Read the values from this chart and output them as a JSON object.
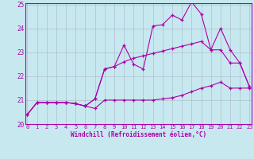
{
  "xlabel": "Windchill (Refroidissement éolien,°C)",
  "xlim": [
    0,
    23
  ],
  "ylim": [
    20,
    25
  ],
  "yticks": [
    20,
    21,
    22,
    23,
    24,
    25
  ],
  "xticks": [
    0,
    1,
    2,
    3,
    4,
    5,
    6,
    7,
    8,
    9,
    10,
    11,
    12,
    13,
    14,
    15,
    16,
    17,
    18,
    19,
    20,
    21,
    22,
    23
  ],
  "background_color": "#c8e8f0",
  "line_color": "#aa00aa",
  "grid_color": "#aabbcc",
  "line1_x": [
    0,
    1,
    2,
    3,
    4,
    5,
    6,
    7,
    8,
    9,
    10,
    11,
    12,
    13,
    14,
    15,
    16,
    17,
    18,
    19,
    20,
    21,
    22,
    23
  ],
  "line1_y": [
    20.4,
    20.9,
    20.9,
    20.9,
    20.9,
    20.85,
    20.75,
    20.65,
    21.0,
    21.0,
    21.0,
    21.0,
    21.0,
    21.0,
    21.05,
    21.1,
    21.2,
    21.35,
    21.5,
    21.6,
    21.75,
    21.5,
    21.5,
    21.5
  ],
  "line2_x": [
    0,
    1,
    2,
    3,
    4,
    5,
    6,
    7,
    8,
    9,
    10,
    11,
    12,
    13,
    14,
    15,
    16,
    17,
    18,
    19,
    20,
    21,
    22,
    23
  ],
  "line2_y": [
    20.4,
    20.9,
    20.9,
    20.9,
    20.9,
    20.85,
    20.75,
    21.05,
    22.3,
    22.4,
    23.3,
    22.5,
    22.3,
    24.1,
    24.15,
    24.55,
    24.35,
    25.1,
    24.6,
    23.1,
    24.0,
    23.1,
    22.55,
    21.55
  ],
  "line3_x": [
    0,
    1,
    2,
    3,
    4,
    5,
    6,
    7,
    8,
    9,
    10,
    11,
    12,
    13,
    14,
    15,
    16,
    17,
    18,
    19,
    20,
    21,
    22,
    23
  ],
  "line3_y": [
    20.4,
    20.9,
    20.9,
    20.9,
    20.9,
    20.85,
    20.75,
    21.05,
    22.3,
    22.4,
    22.6,
    22.75,
    22.85,
    22.95,
    23.05,
    23.15,
    23.25,
    23.35,
    23.45,
    23.1,
    23.1,
    22.55,
    22.55,
    21.55
  ]
}
